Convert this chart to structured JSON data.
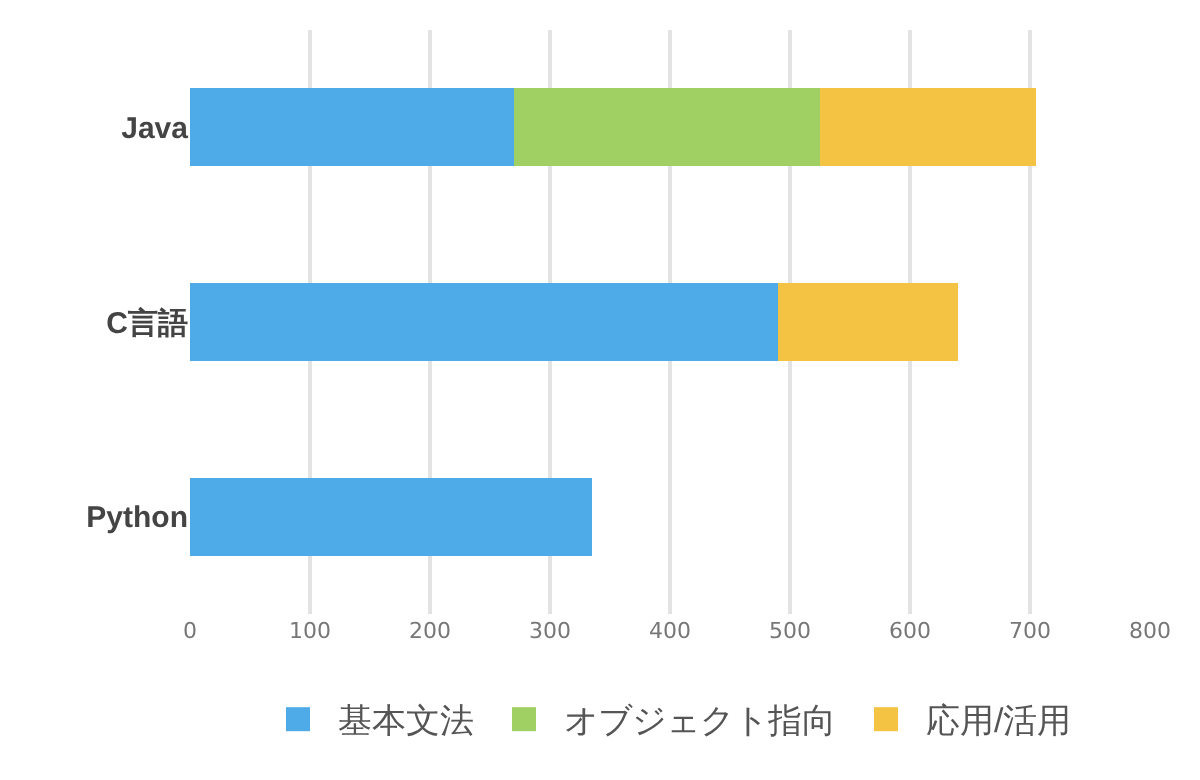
{
  "chart_data": {
    "type": "bar",
    "orientation": "horizontal",
    "stacked": true,
    "categories": [
      "Java",
      "C言語",
      "Python"
    ],
    "series": [
      {
        "name": "基本文法",
        "color": "#4eabe8",
        "values": [
          270,
          490,
          335
        ]
      },
      {
        "name": "オブジェクト指向",
        "color": "#a0d063",
        "values": [
          255,
          null,
          null
        ]
      },
      {
        "name": "応用/活用",
        "color": "#f4c343",
        "values": [
          180,
          150,
          null
        ]
      }
    ],
    "xlim": [
      0,
      800
    ],
    "xticks": [
      0,
      100,
      200,
      300,
      400,
      500,
      600,
      700,
      800
    ],
    "grid": "x",
    "legend": "bottom"
  }
}
